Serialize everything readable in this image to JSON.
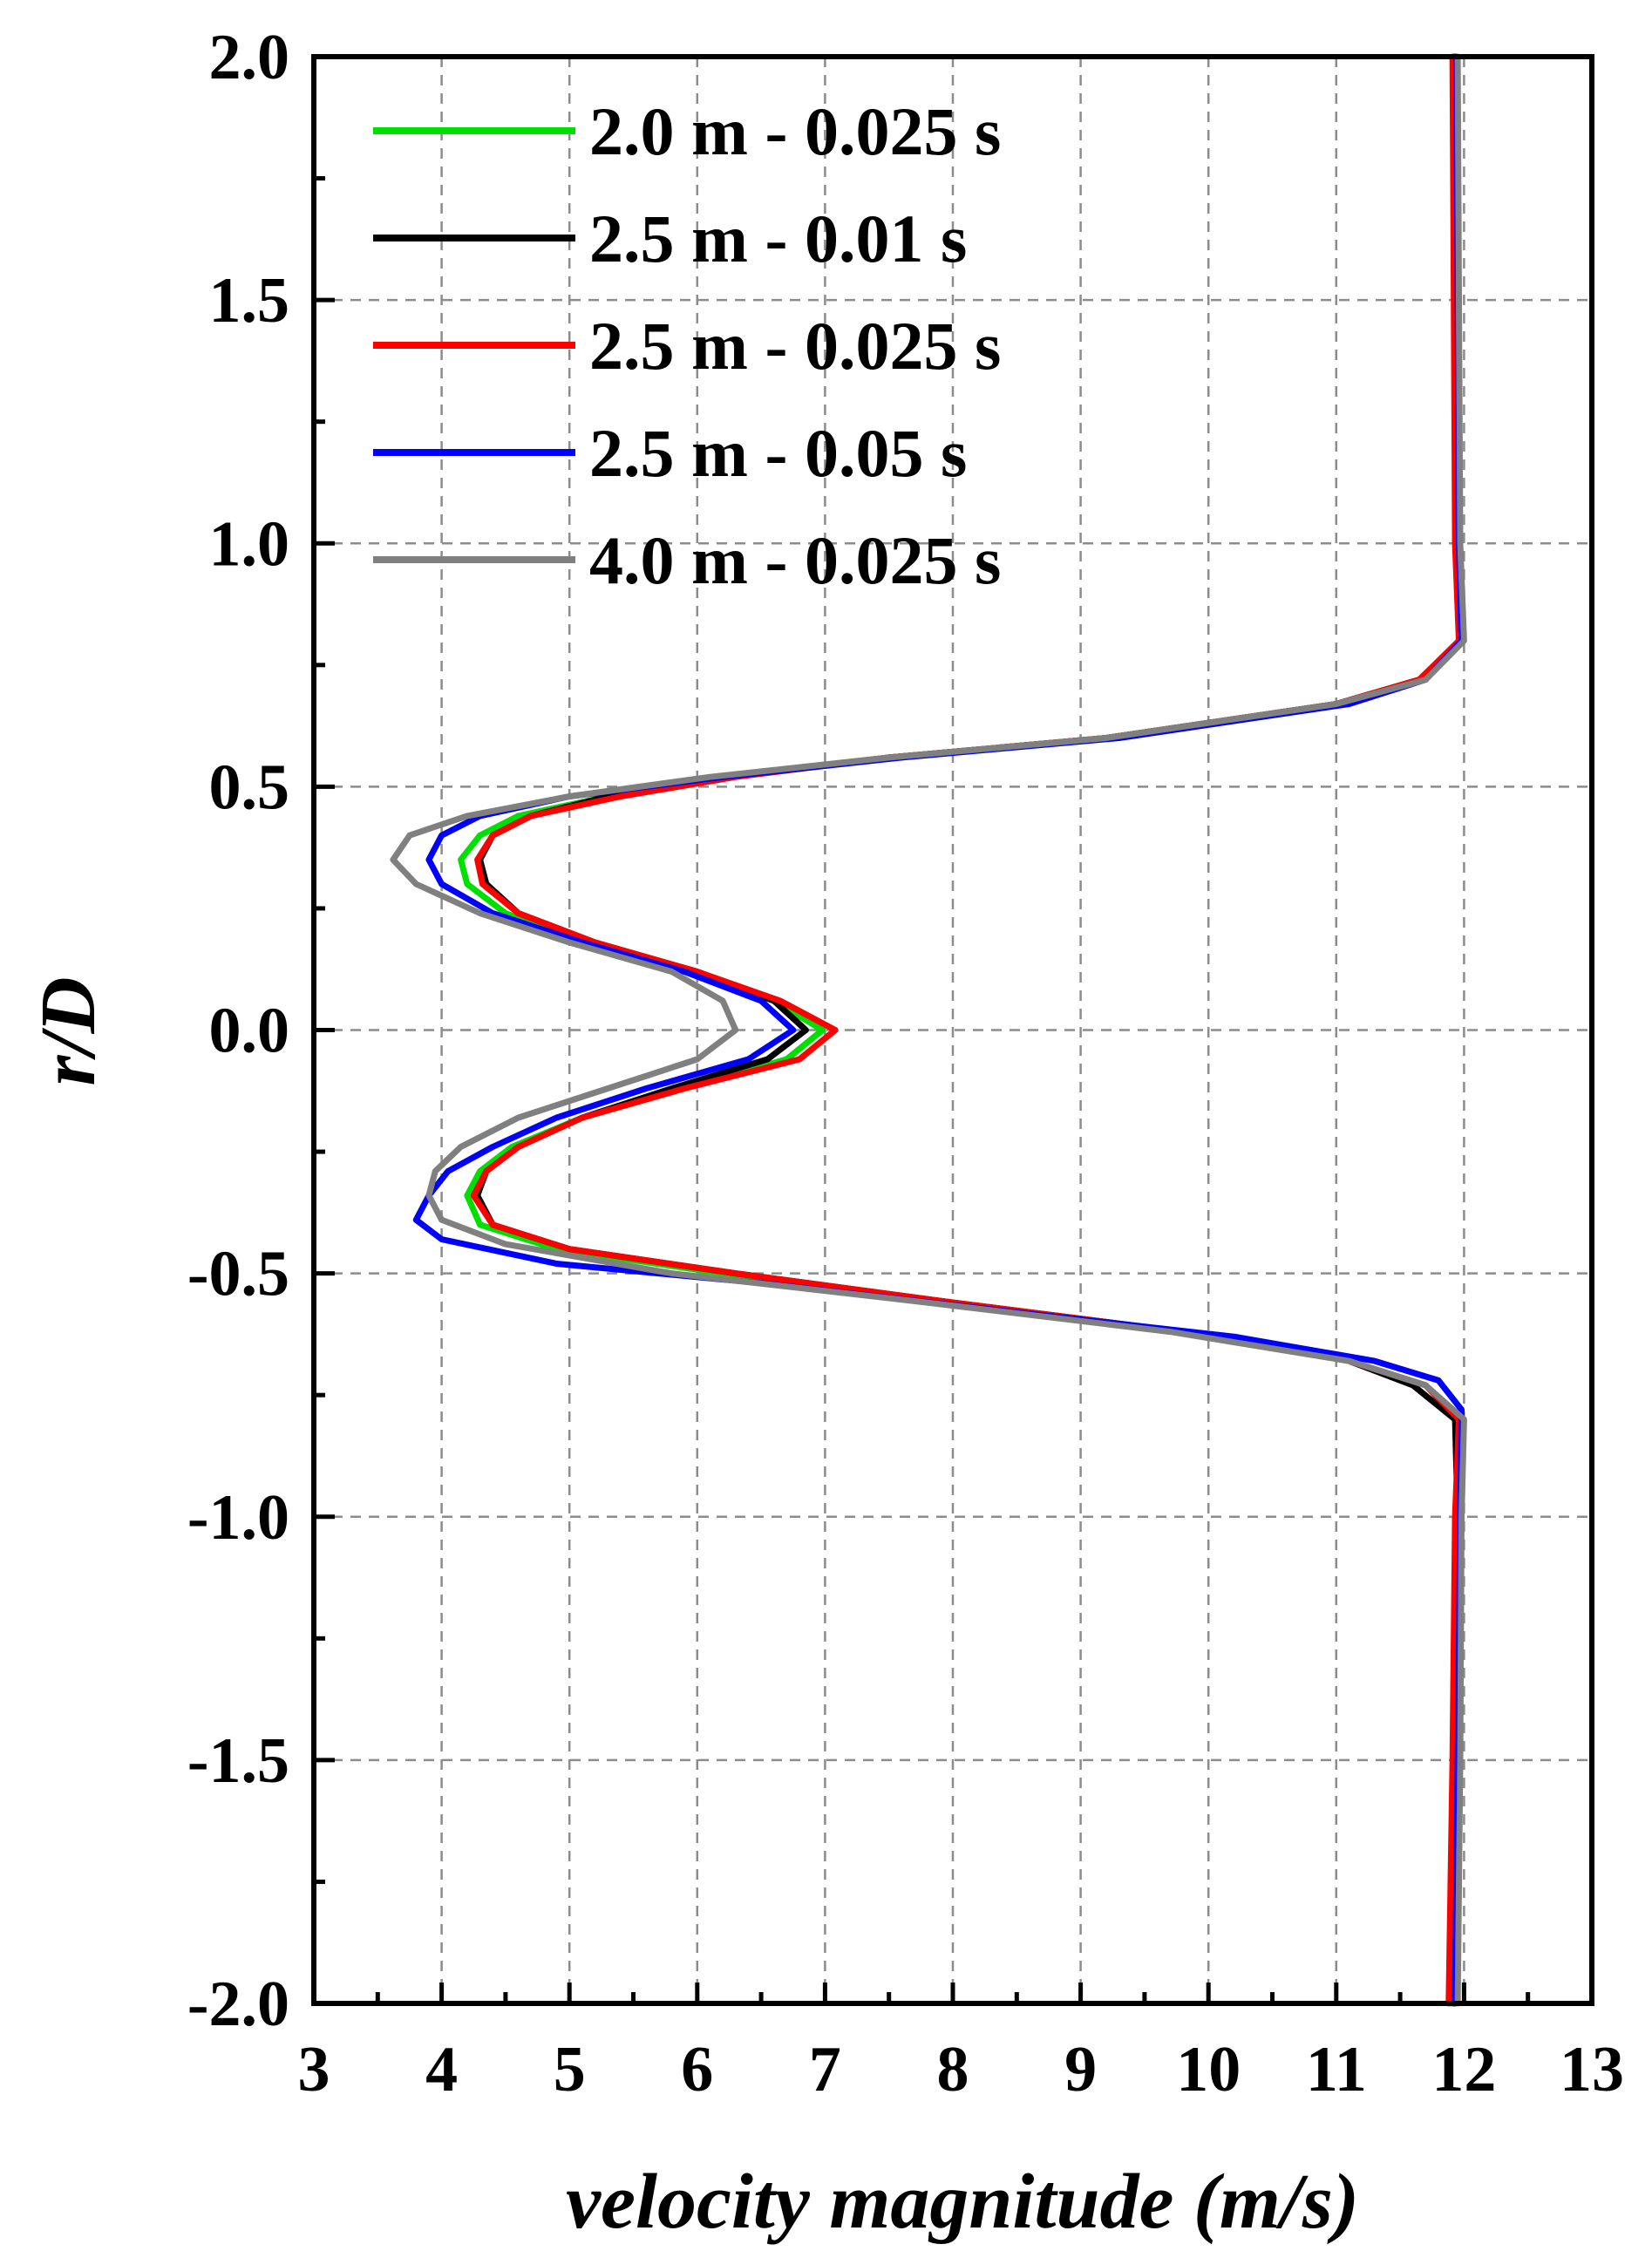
{
  "chart_data": {
    "type": "line",
    "title": "",
    "xlabel": "velocity magnitude (m/s)",
    "ylabel": "r/D",
    "xlim": [
      3,
      13
    ],
    "ylim": [
      -2.0,
      2.0
    ],
    "xticks": [
      3,
      4,
      5,
      6,
      7,
      8,
      9,
      10,
      11,
      12,
      13
    ],
    "xtick_labels": [
      "3",
      "4",
      "5",
      "6",
      "7",
      "8",
      "9",
      "10",
      "11",
      "12",
      "13"
    ],
    "yticks": [
      -2.0,
      -1.5,
      -1.0,
      -0.5,
      0.0,
      0.5,
      1.0,
      1.5,
      2.0
    ],
    "ytick_labels": [
      "-2.0",
      "-1.5",
      "-1.0",
      "-0.5",
      "0.0",
      "0.5",
      "1.0",
      "1.5",
      "2.0"
    ],
    "grid": true,
    "legend_position": "top-left",
    "series": [
      {
        "name": "2.0 m - 0.025 s",
        "color": "#00e000",
        "points": [
          [
            11.92,
            2.0
          ],
          [
            11.93,
            1.5
          ],
          [
            11.94,
            1.0
          ],
          [
            11.97,
            0.8
          ],
          [
            11.65,
            0.72
          ],
          [
            11.0,
            0.67
          ],
          [
            9.2,
            0.6
          ],
          [
            7.5,
            0.56
          ],
          [
            6.2,
            0.52
          ],
          [
            5.3,
            0.48
          ],
          [
            4.6,
            0.44
          ],
          [
            4.3,
            0.4
          ],
          [
            4.15,
            0.35
          ],
          [
            4.2,
            0.3
          ],
          [
            4.5,
            0.24
          ],
          [
            5.1,
            0.18
          ],
          [
            5.9,
            0.12
          ],
          [
            6.6,
            0.06
          ],
          [
            6.98,
            0.0
          ],
          [
            6.7,
            -0.06
          ],
          [
            5.9,
            -0.12
          ],
          [
            5.1,
            -0.18
          ],
          [
            4.55,
            -0.24
          ],
          [
            4.3,
            -0.29
          ],
          [
            4.2,
            -0.34
          ],
          [
            4.3,
            -0.4
          ],
          [
            4.9,
            -0.45
          ],
          [
            6.2,
            -0.5
          ],
          [
            8.0,
            -0.56
          ],
          [
            9.8,
            -0.62
          ],
          [
            11.1,
            -0.68
          ],
          [
            11.7,
            -0.73
          ],
          [
            11.95,
            -0.8
          ],
          [
            11.94,
            -1.0
          ],
          [
            11.92,
            -1.5
          ],
          [
            11.9,
            -2.0
          ]
        ]
      },
      {
        "name": "2.5 m - 0.01 s",
        "color": "#000000",
        "points": [
          [
            11.93,
            2.0
          ],
          [
            11.94,
            1.5
          ],
          [
            11.95,
            1.0
          ],
          [
            11.97,
            0.8
          ],
          [
            11.65,
            0.72
          ],
          [
            11.0,
            0.67
          ],
          [
            9.2,
            0.6
          ],
          [
            7.5,
            0.56
          ],
          [
            6.2,
            0.52
          ],
          [
            5.3,
            0.48
          ],
          [
            4.7,
            0.44
          ],
          [
            4.4,
            0.4
          ],
          [
            4.3,
            0.35
          ],
          [
            4.35,
            0.3
          ],
          [
            4.6,
            0.24
          ],
          [
            5.2,
            0.18
          ],
          [
            6.0,
            0.12
          ],
          [
            6.6,
            0.06
          ],
          [
            6.85,
            0.0
          ],
          [
            6.55,
            -0.06
          ],
          [
            5.8,
            -0.12
          ],
          [
            5.1,
            -0.18
          ],
          [
            4.6,
            -0.24
          ],
          [
            4.35,
            -0.29
          ],
          [
            4.28,
            -0.34
          ],
          [
            4.4,
            -0.4
          ],
          [
            5.0,
            -0.45
          ],
          [
            6.3,
            -0.5
          ],
          [
            8.0,
            -0.56
          ],
          [
            9.8,
            -0.62
          ],
          [
            11.1,
            -0.68
          ],
          [
            11.6,
            -0.73
          ],
          [
            11.93,
            -0.8
          ],
          [
            11.95,
            -1.0
          ],
          [
            11.93,
            -1.5
          ],
          [
            11.92,
            -2.0
          ]
        ]
      },
      {
        "name": "2.5 m - 0.025 s",
        "color": "#ff0000",
        "points": [
          [
            11.91,
            2.0
          ],
          [
            11.92,
            1.5
          ],
          [
            11.93,
            1.0
          ],
          [
            11.96,
            0.8
          ],
          [
            11.65,
            0.72
          ],
          [
            11.0,
            0.67
          ],
          [
            9.2,
            0.6
          ],
          [
            7.5,
            0.56
          ],
          [
            6.3,
            0.52
          ],
          [
            5.4,
            0.48
          ],
          [
            4.7,
            0.44
          ],
          [
            4.4,
            0.4
          ],
          [
            4.28,
            0.35
          ],
          [
            4.32,
            0.3
          ],
          [
            4.6,
            0.24
          ],
          [
            5.2,
            0.18
          ],
          [
            6.0,
            0.12
          ],
          [
            6.65,
            0.06
          ],
          [
            7.08,
            0.0
          ],
          [
            6.8,
            -0.06
          ],
          [
            5.9,
            -0.12
          ],
          [
            5.1,
            -0.18
          ],
          [
            4.6,
            -0.24
          ],
          [
            4.35,
            -0.29
          ],
          [
            4.25,
            -0.34
          ],
          [
            4.4,
            -0.4
          ],
          [
            5.0,
            -0.45
          ],
          [
            6.3,
            -0.5
          ],
          [
            8.0,
            -0.56
          ],
          [
            9.8,
            -0.62
          ],
          [
            11.1,
            -0.68
          ],
          [
            11.7,
            -0.73
          ],
          [
            11.96,
            -0.8
          ],
          [
            11.93,
            -1.0
          ],
          [
            11.91,
            -1.5
          ],
          [
            11.88,
            -2.0
          ]
        ]
      },
      {
        "name": "2.5 m - 0.05 s",
        "color": "#0000ff",
        "points": [
          [
            11.94,
            2.0
          ],
          [
            11.95,
            1.5
          ],
          [
            11.96,
            1.0
          ],
          [
            11.98,
            0.8
          ],
          [
            11.7,
            0.72
          ],
          [
            11.1,
            0.67
          ],
          [
            9.3,
            0.6
          ],
          [
            7.6,
            0.56
          ],
          [
            6.2,
            0.52
          ],
          [
            5.0,
            0.48
          ],
          [
            4.3,
            0.44
          ],
          [
            4.0,
            0.4
          ],
          [
            3.9,
            0.35
          ],
          [
            4.0,
            0.3
          ],
          [
            4.4,
            0.24
          ],
          [
            5.1,
            0.18
          ],
          [
            5.9,
            0.12
          ],
          [
            6.5,
            0.06
          ],
          [
            6.75,
            0.0
          ],
          [
            6.4,
            -0.06
          ],
          [
            5.6,
            -0.12
          ],
          [
            4.9,
            -0.18
          ],
          [
            4.4,
            -0.24
          ],
          [
            4.05,
            -0.29
          ],
          [
            3.9,
            -0.34
          ],
          [
            3.8,
            -0.39
          ],
          [
            4.0,
            -0.43
          ],
          [
            4.9,
            -0.48
          ],
          [
            6.5,
            -0.52
          ],
          [
            8.5,
            -0.58
          ],
          [
            10.2,
            -0.63
          ],
          [
            11.3,
            -0.68
          ],
          [
            11.8,
            -0.72
          ],
          [
            11.98,
            -0.78
          ],
          [
            11.97,
            -1.0
          ],
          [
            11.95,
            -1.5
          ],
          [
            11.93,
            -2.0
          ]
        ]
      },
      {
        "name": "4.0 m - 0.025 s",
        "color": "#808080",
        "points": [
          [
            11.95,
            2.0
          ],
          [
            11.96,
            1.5
          ],
          [
            11.97,
            1.0
          ],
          [
            12.0,
            0.8
          ],
          [
            11.7,
            0.72
          ],
          [
            11.0,
            0.67
          ],
          [
            9.2,
            0.6
          ],
          [
            7.5,
            0.56
          ],
          [
            6.1,
            0.52
          ],
          [
            5.0,
            0.48
          ],
          [
            4.2,
            0.44
          ],
          [
            3.75,
            0.4
          ],
          [
            3.62,
            0.35
          ],
          [
            3.8,
            0.3
          ],
          [
            4.3,
            0.24
          ],
          [
            5.0,
            0.18
          ],
          [
            5.8,
            0.12
          ],
          [
            6.2,
            0.06
          ],
          [
            6.3,
            0.0
          ],
          [
            6.0,
            -0.06
          ],
          [
            5.3,
            -0.12
          ],
          [
            4.6,
            -0.18
          ],
          [
            4.15,
            -0.24
          ],
          [
            3.95,
            -0.29
          ],
          [
            3.9,
            -0.34
          ],
          [
            4.0,
            -0.39
          ],
          [
            4.5,
            -0.44
          ],
          [
            5.8,
            -0.5
          ],
          [
            7.8,
            -0.56
          ],
          [
            9.7,
            -0.62
          ],
          [
            11.1,
            -0.68
          ],
          [
            11.7,
            -0.73
          ],
          [
            12.0,
            -0.8
          ],
          [
            11.98,
            -1.0
          ],
          [
            11.97,
            -1.5
          ],
          [
            11.95,
            -2.0
          ]
        ]
      }
    ]
  }
}
